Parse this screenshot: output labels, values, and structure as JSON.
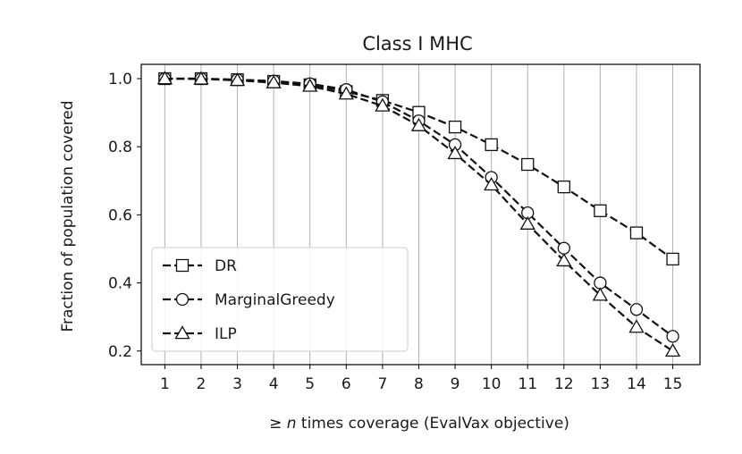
{
  "chart_data": {
    "type": "line",
    "title": "Class I MHC",
    "xlabel_prefix": "≥ ",
    "xlabel_var": "n",
    "xlabel_suffix": " times coverage (EvalVax objective)",
    "ylabel": "Fraction of population covered",
    "x": [
      1,
      2,
      3,
      4,
      5,
      6,
      7,
      8,
      9,
      10,
      11,
      12,
      13,
      14,
      15
    ],
    "xlim": [
      0.35,
      15.75
    ],
    "ylim": [
      0.16,
      1.042
    ],
    "yticks": [
      0.2,
      0.4,
      0.6,
      0.8,
      1.0
    ],
    "ytick_labels": [
      "0.2",
      "0.4",
      "0.6",
      "0.8",
      "1.0"
    ],
    "grid": "x-only",
    "legend_position": "lower-left",
    "series": [
      {
        "name": "DR",
        "marker": "square",
        "values": [
          1.0,
          1.0,
          0.997,
          0.992,
          0.982,
          0.962,
          0.936,
          0.901,
          0.858,
          0.806,
          0.748,
          0.682,
          0.612,
          0.547,
          0.47
        ]
      },
      {
        "name": "MarginalGreedy",
        "marker": "circle",
        "values": [
          1.0,
          1.0,
          0.997,
          0.993,
          0.985,
          0.968,
          0.932,
          0.876,
          0.806,
          0.71,
          0.606,
          0.502,
          0.4,
          0.322,
          0.243
        ]
      },
      {
        "name": "ILP",
        "marker": "triangle",
        "values": [
          1.0,
          0.999,
          0.995,
          0.988,
          0.978,
          0.955,
          0.92,
          0.862,
          0.78,
          0.688,
          0.573,
          0.465,
          0.364,
          0.27,
          0.2
        ]
      }
    ],
    "colors": {
      "line": "#111111",
      "marker_fill": "#ffffff",
      "grid": "#b0b0b0"
    }
  }
}
